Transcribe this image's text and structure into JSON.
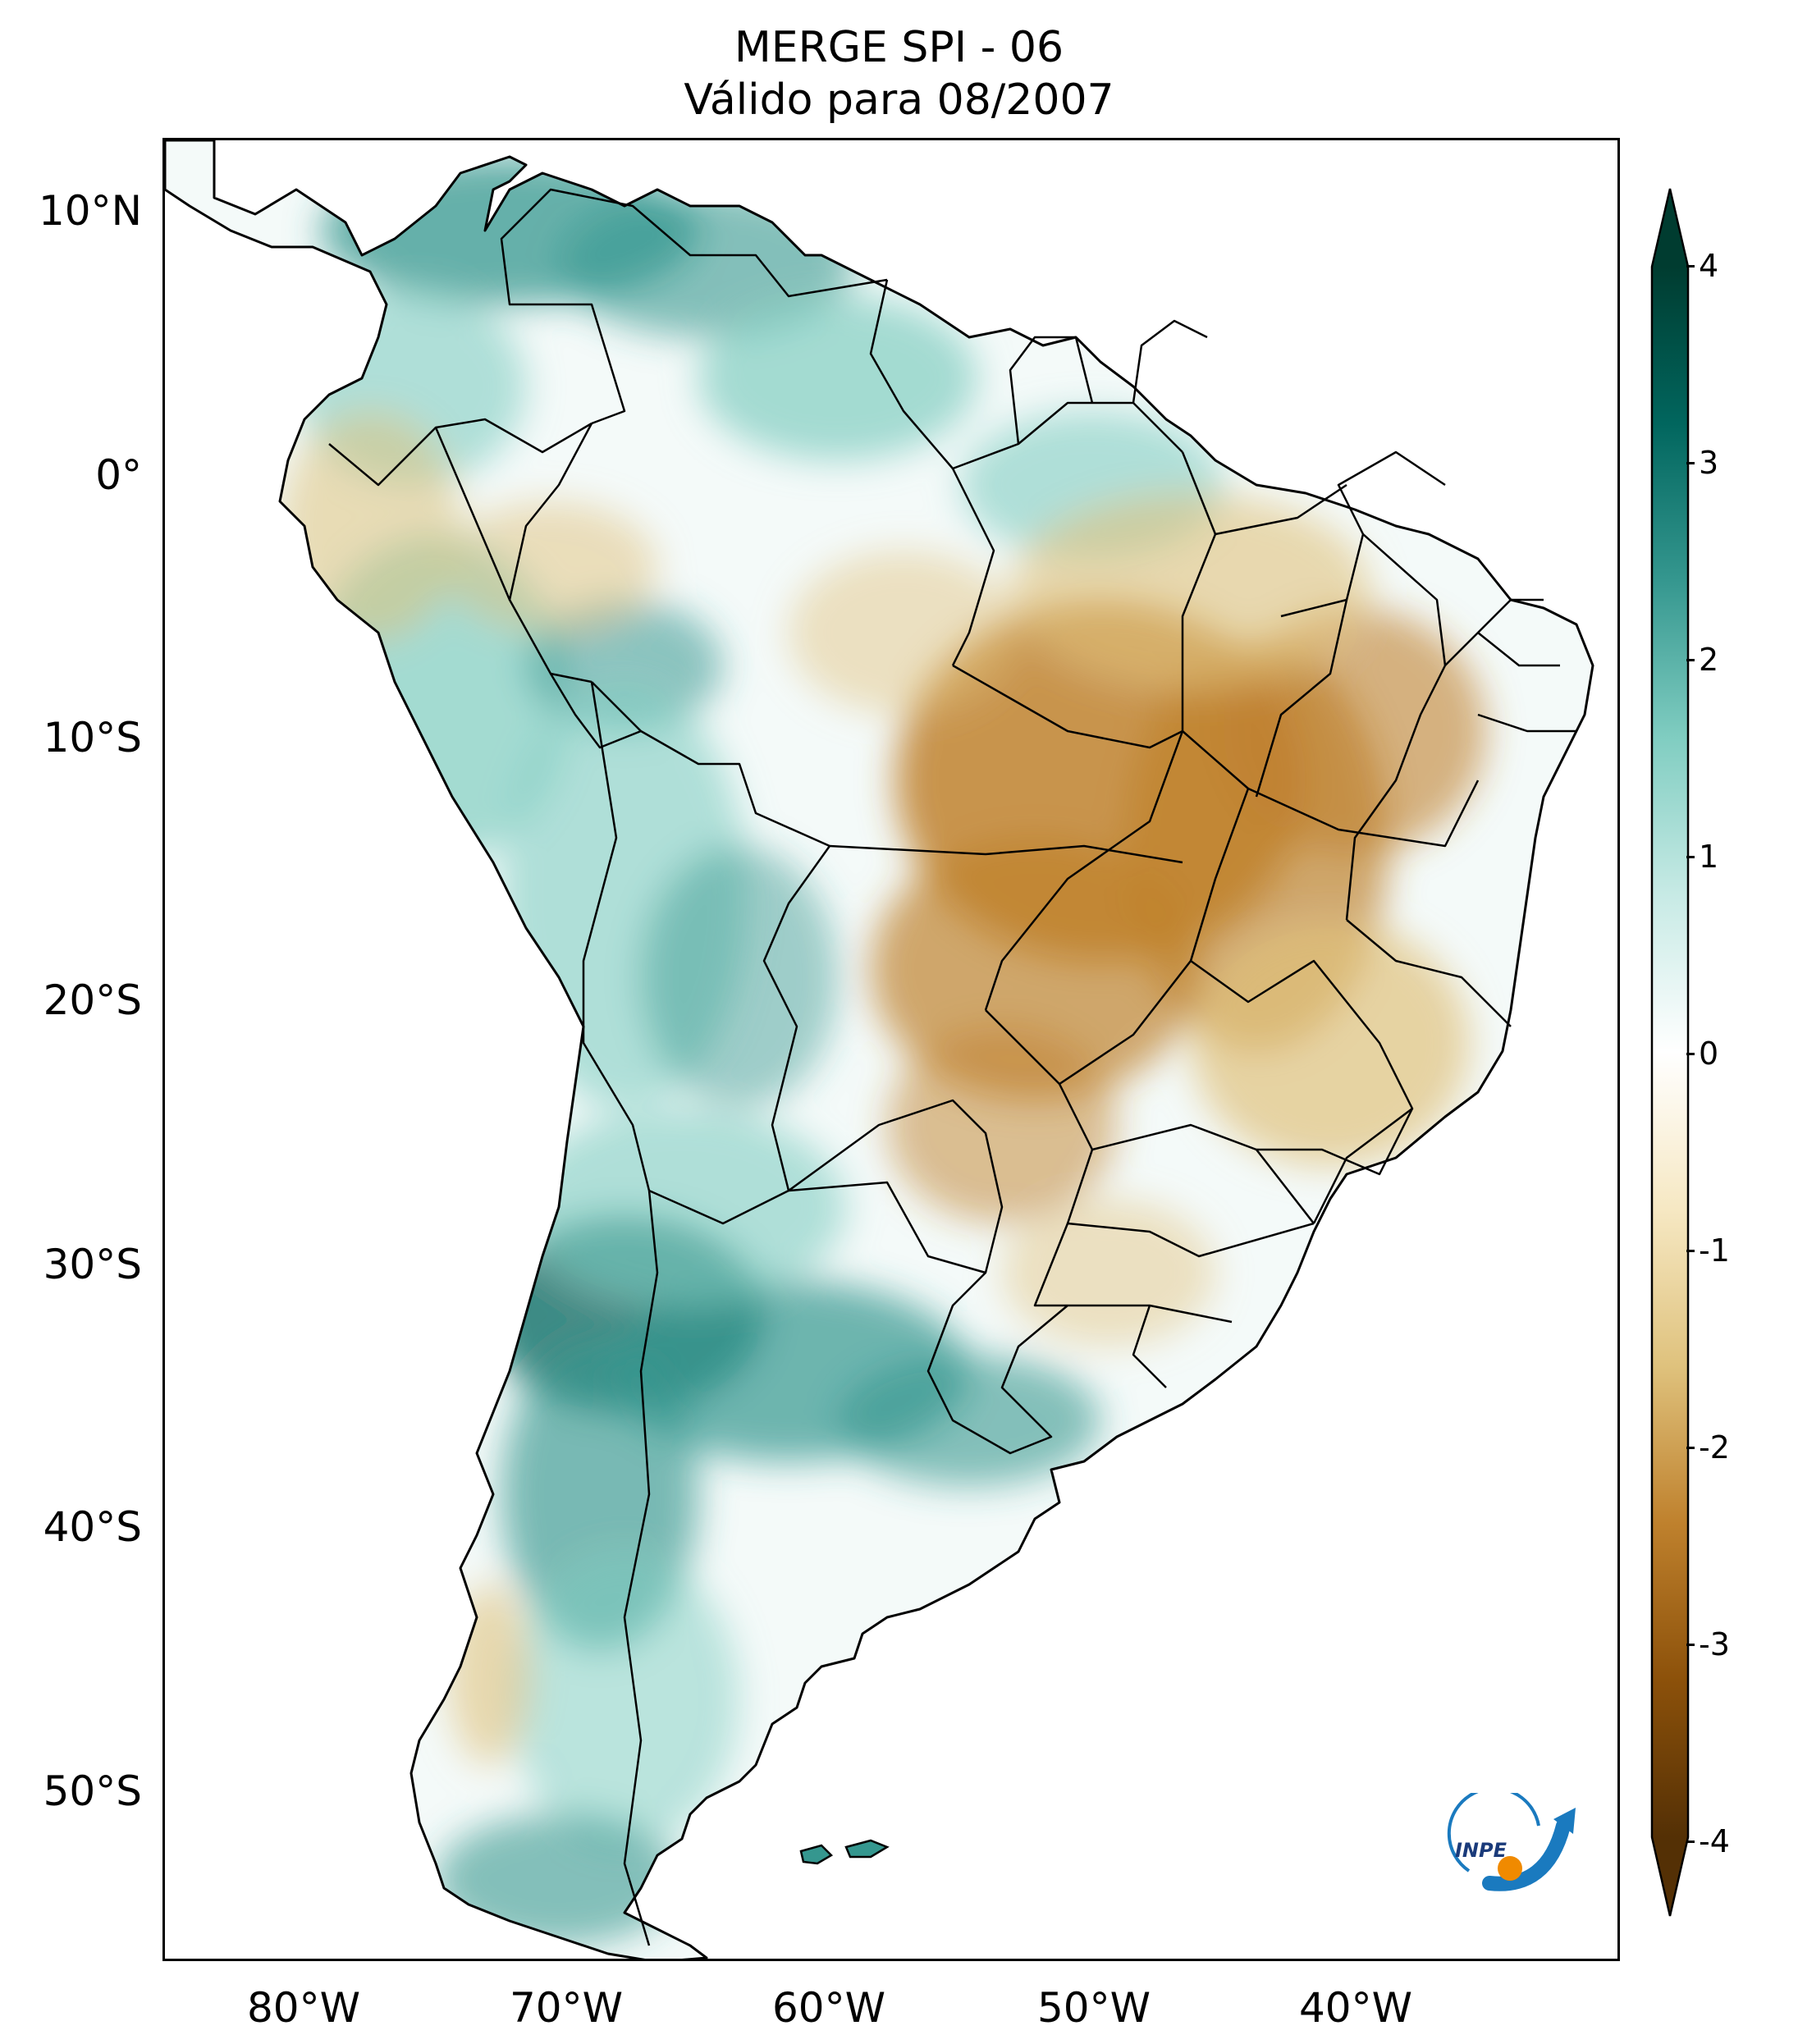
{
  "title": {
    "line1": "MERGE   SPI - 06",
    "line2": "Válido para 08/2007"
  },
  "map": {
    "region": "South America",
    "variable": "SPI - 06",
    "lat_labels": [
      "10°N",
      "0°",
      "10°S",
      "20°S",
      "30°S",
      "40°S",
      "50°S"
    ],
    "lon_labels": [
      "80°W",
      "70°W",
      "60°W",
      "50°W",
      "40°W"
    ],
    "lat_range": [
      -56,
      12.5
    ],
    "lon_range": [
      -85,
      -30
    ],
    "outline_color": "#000000"
  },
  "colorbar": {
    "ticks": [
      "4",
      "3",
      "2",
      "1",
      "0",
      "-1",
      "-2",
      "-3",
      "-4"
    ],
    "min": -4,
    "max": 4,
    "colors": [
      "#543005",
      "#8c510a",
      "#bf812d",
      "#dfc27d",
      "#f6e8c3",
      "#ffffff",
      "#c7eae5",
      "#80cdc1",
      "#35978f",
      "#01665e",
      "#003c30"
    ]
  },
  "logo": {
    "text": "INPE",
    "name": "inpe-logo"
  }
}
